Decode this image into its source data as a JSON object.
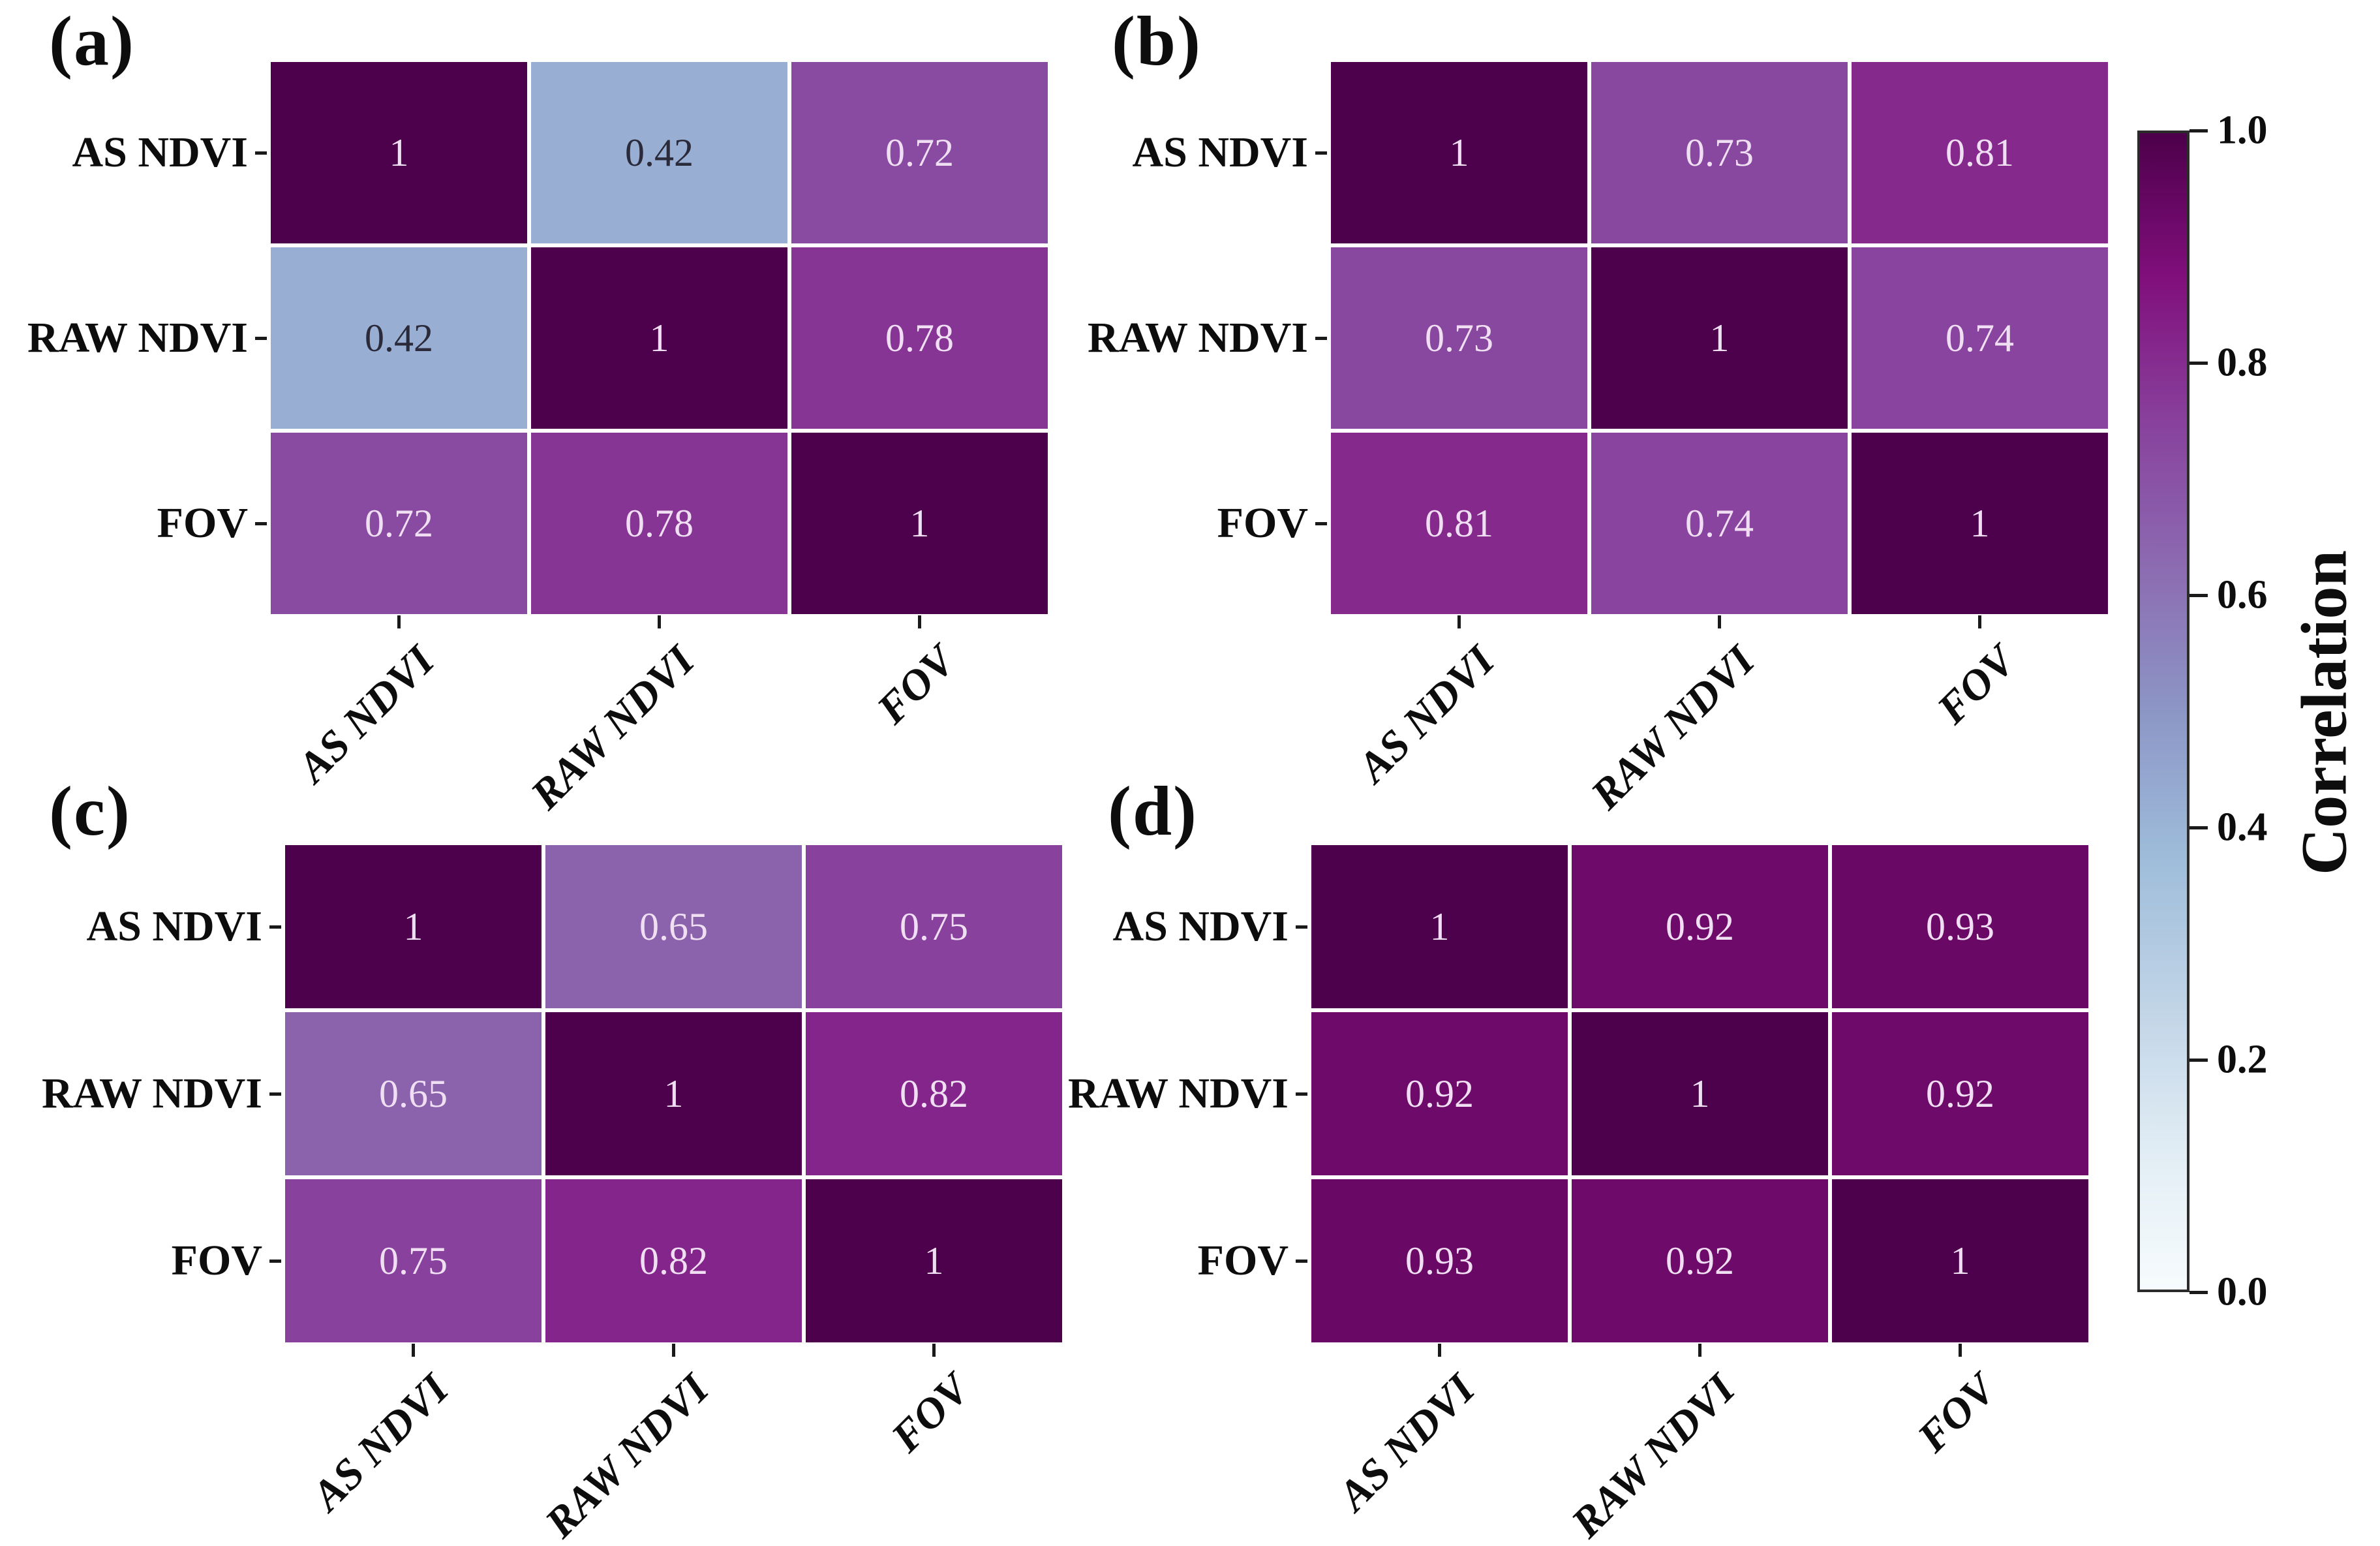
{
  "figure": {
    "type": "correlation-heatmap-figure",
    "background": "#ffffff",
    "text_color": "#0d0d0d"
  },
  "colorbar": {
    "label": "Correlation",
    "tick_labels": [
      "1.0",
      "0.8",
      "0.6",
      "0.4",
      "0.2",
      "0.0"
    ],
    "tick_values": [
      1.0,
      0.8,
      0.6,
      0.4,
      0.2,
      0.0
    ],
    "range": [
      0.0,
      1.0
    ],
    "colormap": "BuPu",
    "colormap_stops": [
      "#f7fcfd",
      "#e0ecf4",
      "#bfd3e6",
      "#9ebcda",
      "#8c96c6",
      "#8c6bb1",
      "#88419d",
      "#810f7c",
      "#4d004b"
    ]
  },
  "chart_data": {
    "type": "heatmap",
    "layout": "2x2 panels with shared vertical colorbar at right",
    "variables": [
      "AS NDVI",
      "RAW NDVI",
      "FOV"
    ],
    "x_tick_labels": [
      "AS NDVI",
      "RAW NDVI",
      "FOV"
    ],
    "y_tick_labels": [
      "AS NDVI",
      "RAW NDVI",
      "FOV"
    ],
    "value_range": [
      0,
      1
    ],
    "colormap": "BuPu",
    "cell_text_light": "#f0dff2",
    "cell_text_dark": "#2a2a3a",
    "panels": [
      {
        "label": "(a)",
        "matrix": [
          [
            1,
            0.42,
            0.72
          ],
          [
            0.42,
            1,
            0.78
          ],
          [
            0.72,
            0.78,
            1
          ]
        ]
      },
      {
        "label": "(b)",
        "matrix": [
          [
            1,
            0.73,
            0.81
          ],
          [
            0.73,
            1,
            0.74
          ],
          [
            0.81,
            0.74,
            1
          ]
        ]
      },
      {
        "label": "(c)",
        "matrix": [
          [
            1,
            0.65,
            0.75
          ],
          [
            0.65,
            1,
            0.82
          ],
          [
            0.75,
            0.82,
            1
          ]
        ]
      },
      {
        "label": "(d)",
        "matrix": [
          [
            1,
            0.92,
            0.93
          ],
          [
            0.92,
            1,
            0.92
          ],
          [
            0.93,
            0.92,
            1
          ]
        ]
      }
    ],
    "colorbar_label": "Correlation",
    "colorbar_ticks": [
      "1.0",
      "0.8",
      "0.6",
      "0.4",
      "0.2",
      "0.0"
    ]
  }
}
